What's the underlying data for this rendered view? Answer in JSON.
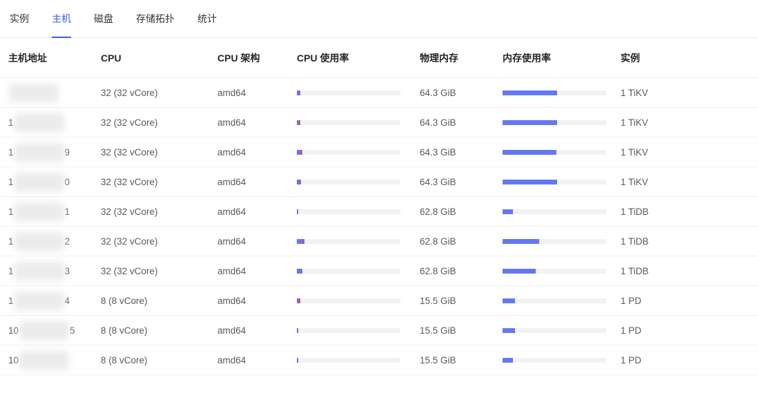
{
  "tabs": [
    {
      "label": "实例",
      "active": false
    },
    {
      "label": "主机",
      "active": true
    },
    {
      "label": "磁盘",
      "active": false
    },
    {
      "label": "存储拓扑",
      "active": false
    },
    {
      "label": "统计",
      "active": false
    }
  ],
  "colors": {
    "accent": "#3d5af1",
    "bar_primary": "#6478f2",
    "bar_secondary": "#e5484d",
    "bar_track": "#f2f2f2"
  },
  "table": {
    "columns": [
      "主机地址",
      "CPU",
      "CPU 架构",
      "CPU 使用率",
      "物理内存",
      "内存使用率",
      "实例"
    ],
    "rows": [
      {
        "host_prefix": "",
        "host_suffix": "",
        "cpu": "32 (32 vCore)",
        "arch": "amd64",
        "cpu_usage_primary_pct": 2.7,
        "cpu_usage_secondary_pct": 0.7,
        "memory": "64.3 GiB",
        "mem_usage_pct": 52.5,
        "instances": "1 TiKV"
      },
      {
        "host_prefix": "1",
        "host_suffix": "",
        "cpu": "32 (32 vCore)",
        "arch": "amd64",
        "cpu_usage_primary_pct": 2.0,
        "cpu_usage_secondary_pct": 1.3,
        "memory": "64.3 GiB",
        "mem_usage_pct": 52.5,
        "instances": "1 TiKV"
      },
      {
        "host_prefix": "1",
        "host_suffix": "9",
        "cpu": "32 (32 vCore)",
        "arch": "amd64",
        "cpu_usage_primary_pct": 4.0,
        "cpu_usage_secondary_pct": 1.3,
        "memory": "64.3 GiB",
        "mem_usage_pct": 52.0,
        "instances": "1 TiKV"
      },
      {
        "host_prefix": "1",
        "host_suffix": "0",
        "cpu": "32 (32 vCore)",
        "arch": "amd64",
        "cpu_usage_primary_pct": 3.3,
        "cpu_usage_secondary_pct": 1.0,
        "memory": "64.3 GiB",
        "mem_usage_pct": 52.5,
        "instances": "1 TiKV"
      },
      {
        "host_prefix": "1",
        "host_suffix": "1",
        "cpu": "32 (32 vCore)",
        "arch": "amd64",
        "cpu_usage_primary_pct": 1.0,
        "cpu_usage_secondary_pct": 0,
        "memory": "62.8 GiB",
        "mem_usage_pct": 10.0,
        "instances": "1 TiDB"
      },
      {
        "host_prefix": "1",
        "host_suffix": "2",
        "cpu": "32 (32 vCore)",
        "arch": "amd64",
        "cpu_usage_primary_pct": 6.0,
        "cpu_usage_secondary_pct": 1.3,
        "memory": "62.8 GiB",
        "mem_usage_pct": 35.0,
        "instances": "1 TiDB"
      },
      {
        "host_prefix": "1",
        "host_suffix": "3",
        "cpu": "32 (32 vCore)",
        "arch": "amd64",
        "cpu_usage_primary_pct": 5.3,
        "cpu_usage_secondary_pct": 0,
        "memory": "62.8 GiB",
        "mem_usage_pct": 32.0,
        "instances": "1 TiDB"
      },
      {
        "host_prefix": "1",
        "host_suffix": "4",
        "cpu": "8 (8 vCore)",
        "arch": "amd64",
        "cpu_usage_primary_pct": 2.0,
        "cpu_usage_secondary_pct": 1.3,
        "memory": "15.5 GiB",
        "mem_usage_pct": 12.0,
        "instances": "1 PD"
      },
      {
        "host_prefix": "10",
        "host_suffix": "5",
        "cpu": "8 (8 vCore)",
        "arch": "amd64",
        "cpu_usage_primary_pct": 1.3,
        "cpu_usage_secondary_pct": 0,
        "memory": "15.5 GiB",
        "mem_usage_pct": 12.0,
        "instances": "1 PD"
      },
      {
        "host_prefix": "10",
        "host_suffix": "",
        "cpu": "8 (8 vCore)",
        "arch": "amd64",
        "cpu_usage_primary_pct": 1.3,
        "cpu_usage_secondary_pct": 0,
        "memory": "15.5 GiB",
        "mem_usage_pct": 10.0,
        "instances": "1 PD"
      }
    ]
  }
}
